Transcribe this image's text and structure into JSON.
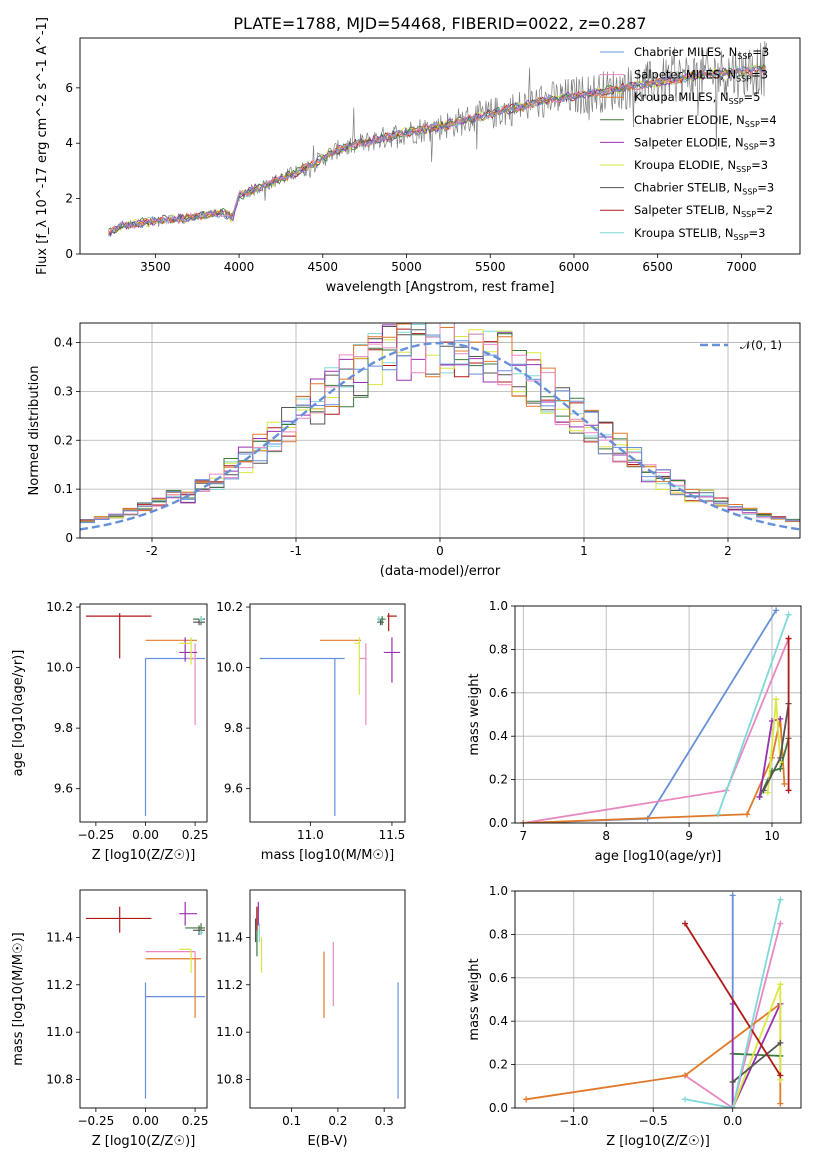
{
  "title": "PLATE=1788, MJD=54468, FIBERID=0022, z=0.287",
  "colors": [
    "#6690d8",
    "#e888c0",
    "#e07a2a",
    "#3a7a3a",
    "#9a30b0",
    "#d8e840",
    "#555555",
    "#b01818",
    "#80d8d8"
  ],
  "legend_entries": [
    {
      "label": "Chabrier MILES, N",
      "n": "3"
    },
    {
      "label": "Salpeter MILES, N",
      "n": "3"
    },
    {
      "label": "Kroupa MILES, N",
      "n": "5"
    },
    {
      "label": "Chabrier ELODIE, N",
      "n": "4"
    },
    {
      "label": "Salpeter ELODIE, N",
      "n": "3"
    },
    {
      "label": "Kroupa ELODIE, N",
      "n": "3"
    },
    {
      "label": "Chabrier STELIB, N",
      "n": "3"
    },
    {
      "label": "Salpeter STELIB, N",
      "n": "2"
    },
    {
      "label": "Kroupa STELIB, N",
      "n": "3"
    }
  ],
  "legend_sub": "SSP",
  "dist_legend": "𝒩(0, 1)",
  "chart_data": [
    {
      "id": "spectrum",
      "type": "line",
      "title": "PLATE=1788, MJD=54468, FIBERID=0022, z=0.287",
      "xlabel": "wavelength [Angstrom, rest frame]",
      "ylabel": "Flux [f_λ 10^-17 erg cm^-2 s^-1 A^-1]",
      "xlim": [
        3050,
        7350
      ],
      "ylim": [
        0,
        7.8
      ],
      "xticks": [
        3500,
        4000,
        4500,
        5000,
        5500,
        6000,
        6500,
        7000
      ],
      "yticks": [
        0,
        2,
        4,
        6
      ],
      "continuum": [
        [
          3220,
          0.75
        ],
        [
          3300,
          1.0
        ],
        [
          3500,
          1.2
        ],
        [
          3700,
          1.3
        ],
        [
          3900,
          1.5
        ],
        [
          3960,
          1.3
        ],
        [
          4000,
          2.1
        ],
        [
          4200,
          2.6
        ],
        [
          4400,
          3.1
        ],
        [
          4600,
          3.8
        ],
        [
          4800,
          4.1
        ],
        [
          5000,
          4.4
        ],
        [
          5200,
          4.6
        ],
        [
          5400,
          4.9
        ],
        [
          5600,
          5.2
        ],
        [
          5800,
          5.5
        ],
        [
          6000,
          5.7
        ],
        [
          6200,
          5.9
        ],
        [
          6400,
          6.1
        ],
        [
          6600,
          6.3
        ],
        [
          6800,
          6.5
        ],
        [
          7000,
          6.6
        ],
        [
          7150,
          6.7
        ]
      ]
    },
    {
      "id": "residuals",
      "type": "histogram",
      "xlabel": "(data-model)/error",
      "ylabel": "Normed distribution",
      "xlim": [
        -2.5,
        2.5
      ],
      "ylim": [
        0,
        0.44
      ],
      "xticks": [
        -2,
        -1,
        0,
        1,
        2
      ],
      "yticks": [
        0.0,
        0.1,
        0.2,
        0.3,
        0.4
      ],
      "bin_width": 0.1
    },
    {
      "id": "age_vs_Z",
      "type": "scatter",
      "xlabel": "Z [log10(Z/Z☉)]",
      "ylabel": "age [log10(age/yr)]",
      "xlim": [
        -0.33,
        0.31
      ],
      "ylim": [
        9.49,
        10.21
      ],
      "xticks": [
        -0.25,
        0.0,
        0.25
      ],
      "xtick_labels": [
        "−0.25",
        "0.00",
        "0.25"
      ],
      "yticks": [
        9.6,
        9.8,
        10.0,
        10.2
      ],
      "ytick_labels": [
        "9.6",
        "9.8",
        "10.0",
        "10.2"
      ],
      "points": [
        {
          "x": 0.0,
          "y": 10.03,
          "xerr": [
            0.0,
            0.3
          ],
          "yerr": [
            0.52,
            0.0
          ],
          "c": 0
        },
        {
          "x": 0.25,
          "y": 10.03,
          "xerr": [
            0.04,
            0.0
          ],
          "yerr": [
            0.22,
            0.05
          ],
          "c": 1
        },
        {
          "x": 0.0,
          "y": 10.09,
          "xerr": [
            0.0,
            0.26
          ],
          "yerr": [
            0.0,
            0.0
          ],
          "c": 2
        },
        {
          "x": 0.28,
          "y": 10.16,
          "xerr": [
            0.04,
            0.02
          ],
          "yerr": [
            0.02,
            0.01
          ],
          "c": 3
        },
        {
          "x": 0.2,
          "y": 10.05,
          "xerr": [
            0.03,
            0.06
          ],
          "yerr": [
            0.03,
            0.05
          ],
          "c": 4
        },
        {
          "x": 0.23,
          "y": 10.08,
          "xerr": [
            0.06,
            0.0
          ],
          "yerr": [
            0.07,
            0.02
          ],
          "c": 5
        },
        {
          "x": 0.27,
          "y": 10.15,
          "xerr": [
            0.03,
            0.03
          ],
          "yerr": [
            0.01,
            0.01
          ],
          "c": 6
        },
        {
          "x": -0.13,
          "y": 10.17,
          "xerr": [
            0.17,
            0.16
          ],
          "yerr": [
            0.14,
            0.01
          ],
          "c": 7
        },
        {
          "x": 0.28,
          "y": 10.16,
          "xerr": [
            0.01,
            0.01
          ],
          "yerr": [
            0.01,
            0.01
          ],
          "c": 8
        }
      ]
    },
    {
      "id": "age_vs_mass",
      "type": "scatter",
      "xlabel": "mass [log10(M/M☉)]",
      "ylabel": "",
      "xlim": [
        10.63,
        11.58
      ],
      "ylim": [
        9.49,
        10.21
      ],
      "xticks": [
        11.0,
        11.5
      ],
      "xtick_labels": [
        "11.0",
        "11.5"
      ],
      "yticks": [
        9.6,
        9.8,
        10.0,
        10.2
      ],
      "ytick_labels": [
        "9.6",
        "9.8",
        "10.0",
        "10.2"
      ],
      "points": [
        {
          "x": 11.15,
          "y": 10.03,
          "xerr": [
            0.46,
            0.06
          ],
          "yerr": [
            0.52,
            0.0
          ],
          "c": 0
        },
        {
          "x": 11.34,
          "y": 10.03,
          "xerr": [
            0.04,
            0.0
          ],
          "yerr": [
            0.22,
            0.05
          ],
          "c": 1
        },
        {
          "x": 11.31,
          "y": 10.09,
          "xerr": [
            0.25,
            0.0
          ],
          "yerr": [
            0.0,
            0.0
          ],
          "c": 2
        },
        {
          "x": 11.44,
          "y": 10.16,
          "xerr": [
            0.03,
            0.02
          ],
          "yerr": [
            0.02,
            0.01
          ],
          "c": 3
        },
        {
          "x": 11.5,
          "y": 10.05,
          "xerr": [
            0.05,
            0.05
          ],
          "yerr": [
            0.1,
            0.05
          ],
          "c": 4
        },
        {
          "x": 11.3,
          "y": 10.08,
          "xerr": [
            0.03,
            0.0
          ],
          "yerr": [
            0.17,
            0.02
          ],
          "c": 5
        },
        {
          "x": 11.43,
          "y": 10.15,
          "xerr": [
            0.02,
            0.02
          ],
          "yerr": [
            0.01,
            0.01
          ],
          "c": 6
        },
        {
          "x": 11.48,
          "y": 10.17,
          "xerr": [
            0.01,
            0.05
          ],
          "yerr": [
            0.05,
            0.01
          ],
          "c": 7
        },
        {
          "x": 11.42,
          "y": 10.16,
          "xerr": [
            0.01,
            0.01
          ],
          "yerr": [
            0.01,
            0.01
          ],
          "c": 8
        }
      ]
    },
    {
      "id": "mass_weight_vs_age",
      "type": "line",
      "xlabel": "age [log10(age/yr)]",
      "ylabel": "mass weight",
      "xlim": [
        6.9,
        10.35
      ],
      "ylim": [
        0,
        1
      ],
      "xticks": [
        7,
        8,
        9,
        10
      ],
      "xtick_labels": [
        "7",
        "8",
        "9",
        "10"
      ],
      "yticks": [
        0.0,
        0.2,
        0.4,
        0.6,
        0.8,
        1.0
      ],
      "ytick_labels": [
        "0.0",
        "0.2",
        "0.4",
        "0.6",
        "0.8",
        "1.0"
      ],
      "series": [
        {
          "c": 0,
          "x": [
            7.0,
            8.5,
            10.05
          ],
          "y": [
            0.0,
            0.02,
            0.98
          ]
        },
        {
          "c": 1,
          "x": [
            7.0,
            9.45,
            10.2
          ],
          "y": [
            0.0,
            0.15,
            0.85
          ]
        },
        {
          "c": 2,
          "x": [
            7.0,
            9.7,
            10.0,
            10.1,
            10.15
          ],
          "y": [
            0.0,
            0.04,
            0.3,
            0.48,
            0.18
          ]
        },
        {
          "c": 3,
          "x": [
            9.85,
            10.0,
            10.1,
            10.2
          ],
          "y": [
            0.12,
            0.24,
            0.25,
            0.39
          ]
        },
        {
          "c": 4,
          "x": [
            9.85,
            10.0,
            10.1
          ],
          "y": [
            0.12,
            0.47,
            0.48
          ]
        },
        {
          "c": 5,
          "x": [
            9.95,
            10.05,
            10.1
          ],
          "y": [
            0.14,
            0.57,
            0.28
          ]
        },
        {
          "c": 6,
          "x": [
            9.9,
            10.1,
            10.2
          ],
          "y": [
            0.15,
            0.3,
            0.55
          ]
        },
        {
          "c": 7,
          "x": [
            10.2,
            10.2
          ],
          "y": [
            0.85,
            0.15
          ]
        },
        {
          "c": 8,
          "x": [
            9.35,
            10.2
          ],
          "y": [
            0.04,
            0.96
          ]
        }
      ]
    },
    {
      "id": "mass_vs_Z",
      "type": "scatter",
      "xlabel": "Z [log10(Z/Z☉)]",
      "ylabel": "mass [log10(M/M☉)]",
      "xlim": [
        -0.33,
        0.31
      ],
      "ylim": [
        10.68,
        11.6
      ],
      "xticks": [
        -0.25,
        0.0,
        0.25
      ],
      "xtick_labels": [
        "−0.25",
        "0.00",
        "0.25"
      ],
      "yticks": [
        10.8,
        11.0,
        11.2,
        11.4
      ],
      "ytick_labels": [
        "10.8",
        "11.0",
        "11.2",
        "11.4"
      ],
      "points": [
        {
          "x": 0.0,
          "y": 11.15,
          "xerr": [
            0.0,
            0.3
          ],
          "yerr": [
            0.43,
            0.06
          ],
          "c": 0
        },
        {
          "x": 0.25,
          "y": 11.34,
          "xerr": [
            0.25,
            0.0
          ],
          "yerr": [
            0.04,
            0.0
          ],
          "c": 1
        },
        {
          "x": 0.25,
          "y": 11.31,
          "xerr": [
            0.25,
            0.03
          ],
          "yerr": [
            0.25,
            0.0
          ],
          "c": 2
        },
        {
          "x": 0.28,
          "y": 11.44,
          "xerr": [
            0.08,
            0.02
          ],
          "yerr": [
            0.03,
            0.02
          ],
          "c": 3
        },
        {
          "x": 0.2,
          "y": 11.5,
          "xerr": [
            0.03,
            0.06
          ],
          "yerr": [
            0.05,
            0.05
          ],
          "c": 4
        },
        {
          "x": 0.23,
          "y": 11.35,
          "xerr": [
            0.06,
            0.0
          ],
          "yerr": [
            0.1,
            0.0
          ],
          "c": 5
        },
        {
          "x": 0.27,
          "y": 11.43,
          "xerr": [
            0.03,
            0.03
          ],
          "yerr": [
            0.02,
            0.02
          ],
          "c": 6
        },
        {
          "x": -0.13,
          "y": 11.48,
          "xerr": [
            0.17,
            0.16
          ],
          "yerr": [
            0.06,
            0.05
          ],
          "c": 7
        },
        {
          "x": 0.28,
          "y": 11.42,
          "xerr": [
            0.01,
            0.01
          ],
          "yerr": [
            0.01,
            0.01
          ],
          "c": 8
        }
      ]
    },
    {
      "id": "mass_vs_EBV",
      "type": "scatter",
      "xlabel": "E(B-V)",
      "ylabel": "",
      "xlim": [
        0.01,
        0.345
      ],
      "ylim": [
        10.68,
        11.6
      ],
      "xticks": [
        0.1,
        0.2,
        0.3
      ],
      "xtick_labels": [
        "0.1",
        "0.2",
        "0.3"
      ],
      "yticks": [
        10.8,
        11.0,
        11.2,
        11.4
      ],
      "ytick_labels": [
        "10.8",
        "11.0",
        "11.2",
        "11.4"
      ],
      "points": [
        {
          "x": 0.33,
          "y": 11.15,
          "xerr": [
            0,
            0
          ],
          "yerr": [
            0.43,
            0.06
          ],
          "c": 0
        },
        {
          "x": 0.19,
          "y": 11.34,
          "xerr": [
            0,
            0
          ],
          "yerr": [
            0.23,
            0.04
          ],
          "c": 1
        },
        {
          "x": 0.17,
          "y": 11.31,
          "xerr": [
            0,
            0
          ],
          "yerr": [
            0.25,
            0.03
          ],
          "c": 2
        },
        {
          "x": 0.025,
          "y": 11.44,
          "xerr": [
            0,
            0
          ],
          "yerr": [
            0.12,
            0.08
          ],
          "c": 3
        },
        {
          "x": 0.028,
          "y": 11.5,
          "xerr": [
            0,
            0
          ],
          "yerr": [
            0.05,
            0.05
          ],
          "c": 4
        },
        {
          "x": 0.035,
          "y": 11.35,
          "xerr": [
            0,
            0
          ],
          "yerr": [
            0.1,
            0.05
          ],
          "c": 5
        },
        {
          "x": 0.022,
          "y": 11.43,
          "xerr": [
            0,
            0
          ],
          "yerr": [
            0.05,
            0.05
          ],
          "c": 6
        },
        {
          "x": 0.025,
          "y": 11.48,
          "xerr": [
            0,
            0
          ],
          "yerr": [
            0.05,
            0.05
          ],
          "c": 7
        },
        {
          "x": 0.03,
          "y": 11.42,
          "xerr": [
            0,
            0
          ],
          "yerr": [
            0.04,
            0.04
          ],
          "c": 8
        }
      ]
    },
    {
      "id": "mass_weight_vs_Z",
      "type": "line",
      "xlabel": "Z [log10(Z/Z☉)]",
      "ylabel": "mass weight",
      "xlim": [
        -1.37,
        0.43
      ],
      "ylim": [
        0,
        1
      ],
      "xticks": [
        -1.0,
        -0.5,
        0.0
      ],
      "xtick_labels": [
        "−1.0",
        "−0.5",
        "0.0"
      ],
      "yticks": [
        0.0,
        0.2,
        0.4,
        0.6,
        0.8,
        1.0
      ],
      "ytick_labels": [
        "0.0",
        "0.2",
        "0.4",
        "0.6",
        "0.8",
        "1.0"
      ],
      "series": [
        {
          "c": 0,
          "x": [
            0.0,
            0.0
          ],
          "y": [
            0.0,
            0.98
          ]
        },
        {
          "c": 1,
          "x": [
            -0.3,
            0.0,
            0.3
          ],
          "y": [
            0.15,
            0.0,
            0.85
          ]
        },
        {
          "c": 2,
          "x": [
            -1.3,
            -0.3,
            0.3,
            0.3
          ],
          "y": [
            0.04,
            0.15,
            0.48,
            0.02
          ]
        },
        {
          "c": 3,
          "x": [
            0.0,
            0.3
          ],
          "y": [
            0.25,
            0.24
          ]
        },
        {
          "c": 4,
          "x": [
            0.0,
            0.0,
            0.3
          ],
          "y": [
            0.48,
            0.0,
            0.48
          ]
        },
        {
          "c": 5,
          "x": [
            0.0,
            0.3,
            0.3
          ],
          "y": [
            0.0,
            0.57,
            0.13
          ]
        },
        {
          "c": 6,
          "x": [
            0.0,
            0.3
          ],
          "y": [
            0.12,
            0.3
          ]
        },
        {
          "c": 7,
          "x": [
            -0.3,
            0.3
          ],
          "y": [
            0.85,
            0.15
          ]
        },
        {
          "c": 8,
          "x": [
            -0.3,
            0.0,
            0.3
          ],
          "y": [
            0.04,
            0.0,
            0.96
          ]
        }
      ]
    }
  ]
}
